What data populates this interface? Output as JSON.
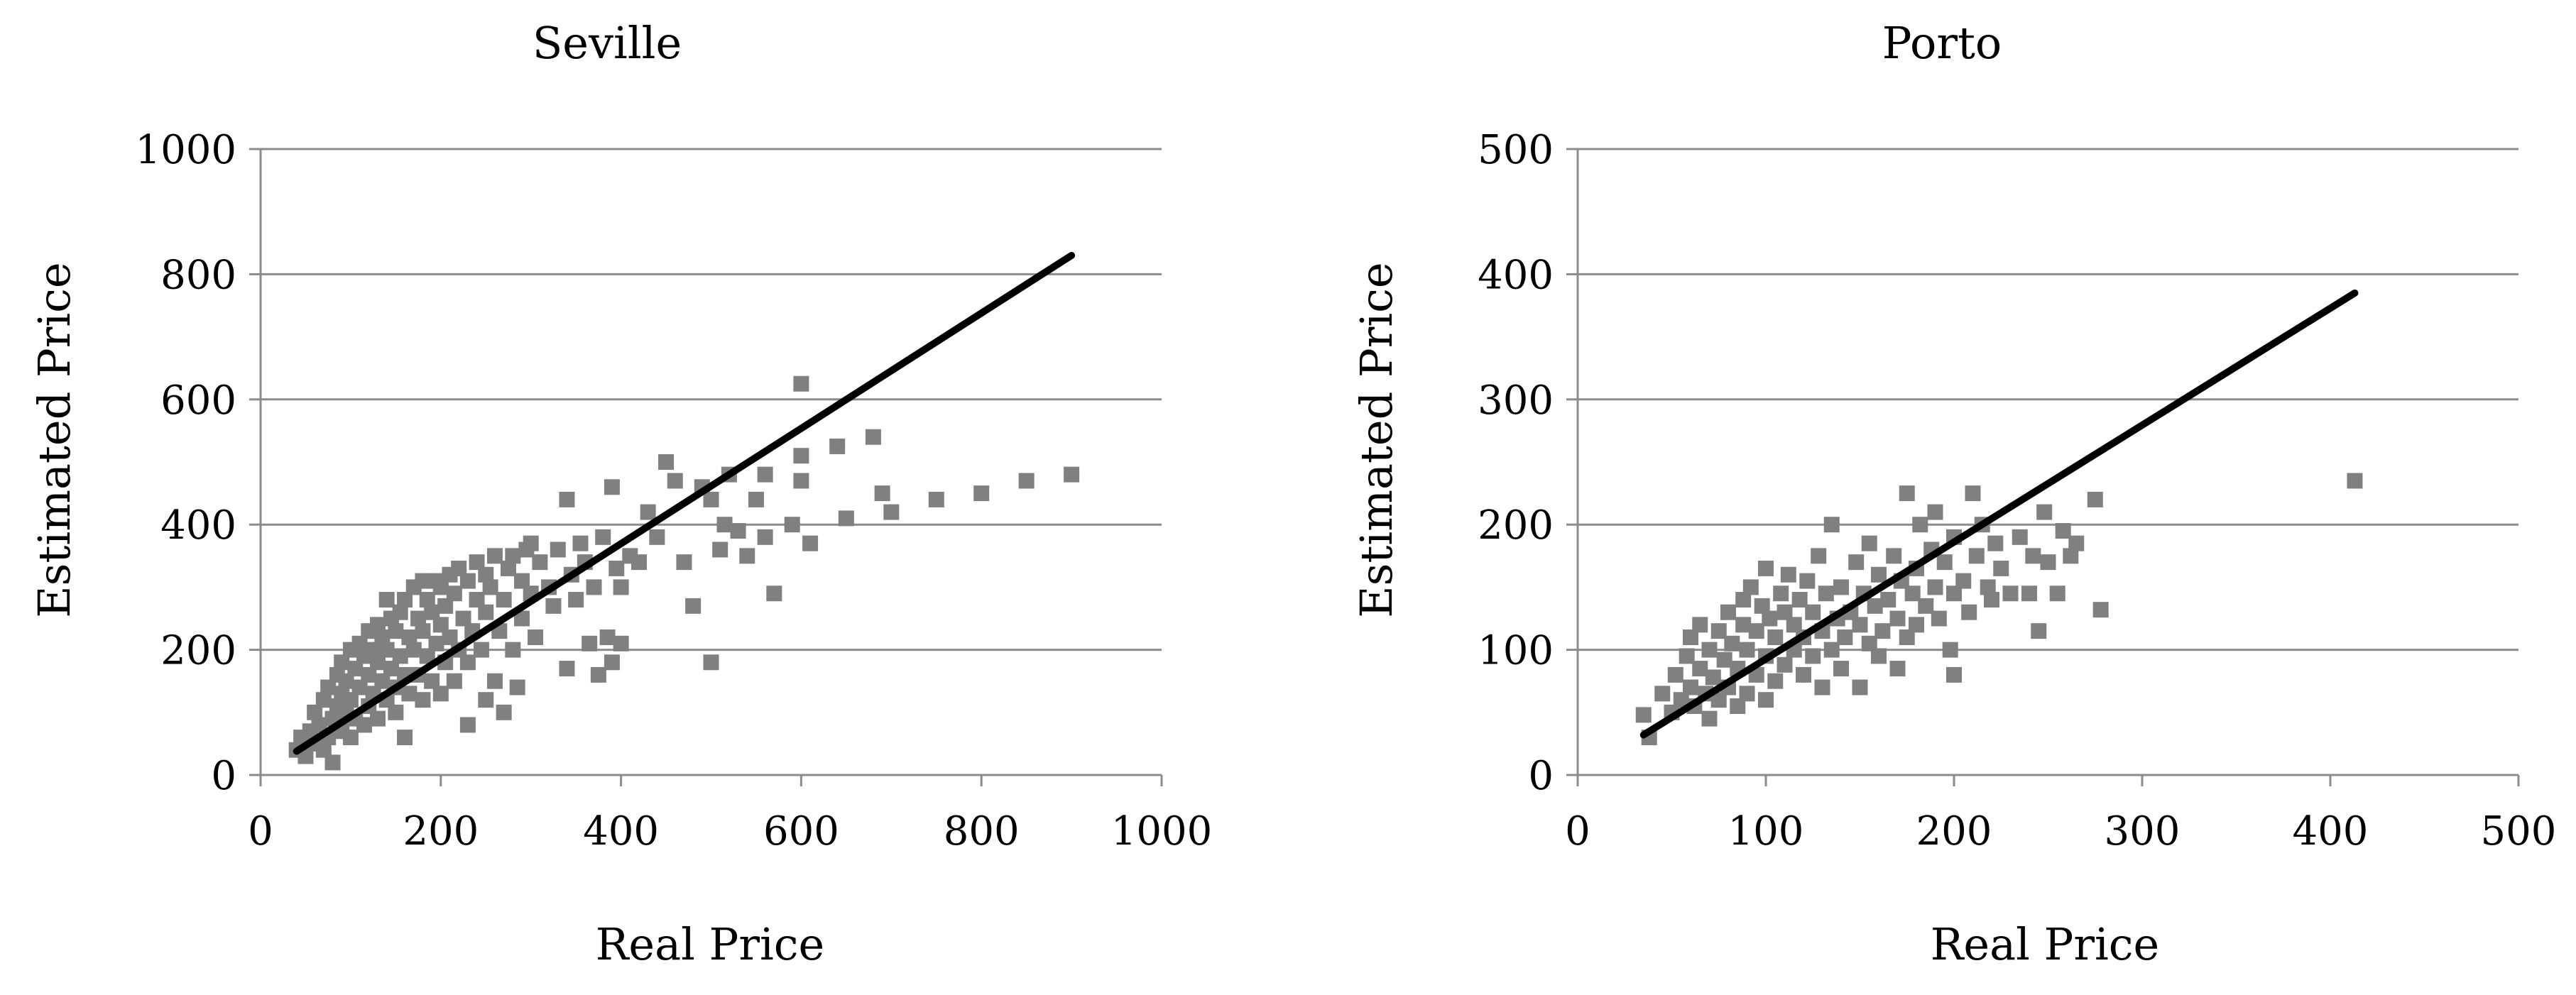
{
  "colors": {
    "points": "#808080",
    "fit_line": "#000000",
    "grid": "#8c8c8c"
  },
  "chart_data": [
    {
      "type": "scatter",
      "title": "Seville",
      "xlabel": "Real Price",
      "ylabel": "Estimated Price",
      "xlim": [
        0,
        1000
      ],
      "ylim": [
        0,
        1000
      ],
      "xticks": [
        0,
        200,
        400,
        600,
        800,
        1000
      ],
      "yticks": [
        0,
        200,
        400,
        600,
        800,
        1000
      ],
      "grid": "horizontal",
      "marker": "square",
      "fit_line": {
        "x": [
          40,
          900
        ],
        "y": [
          38,
          830
        ]
      },
      "points": [
        [
          40,
          40
        ],
        [
          45,
          60
        ],
        [
          50,
          30
        ],
        [
          55,
          70
        ],
        [
          60,
          50
        ],
        [
          60,
          100
        ],
        [
          65,
          80
        ],
        [
          70,
          40
        ],
        [
          70,
          120
        ],
        [
          75,
          60
        ],
        [
          75,
          140
        ],
        [
          80,
          20
        ],
        [
          80,
          90
        ],
        [
          85,
          110
        ],
        [
          85,
          160
        ],
        [
          90,
          70
        ],
        [
          90,
          130
        ],
        [
          90,
          180
        ],
        [
          95,
          100
        ],
        [
          95,
          150
        ],
        [
          100,
          60
        ],
        [
          100,
          120
        ],
        [
          100,
          200
        ],
        [
          105,
          90
        ],
        [
          105,
          170
        ],
        [
          110,
          140
        ],
        [
          110,
          210
        ],
        [
          115,
          80
        ],
        [
          115,
          190
        ],
        [
          120,
          110
        ],
        [
          120,
          160
        ],
        [
          120,
          230
        ],
        [
          125,
          130
        ],
        [
          125,
          200
        ],
        [
          130,
          90
        ],
        [
          130,
          180
        ],
        [
          130,
          240
        ],
        [
          135,
          150
        ],
        [
          135,
          220
        ],
        [
          140,
          280
        ],
        [
          140,
          120
        ],
        [
          140,
          200
        ],
        [
          145,
          170
        ],
        [
          145,
          250
        ],
        [
          150,
          100
        ],
        [
          150,
          140
        ],
        [
          150,
          230
        ],
        [
          155,
          190
        ],
        [
          155,
          260
        ],
        [
          160,
          60
        ],
        [
          160,
          160
        ],
        [
          160,
          280
        ],
        [
          165,
          130
        ],
        [
          165,
          220
        ],
        [
          170,
          200
        ],
        [
          170,
          300
        ],
        [
          175,
          160
        ],
        [
          175,
          250
        ],
        [
          180,
          120
        ],
        [
          180,
          230
        ],
        [
          180,
          310
        ],
        [
          185,
          190
        ],
        [
          185,
          280
        ],
        [
          190,
          150
        ],
        [
          190,
          260
        ],
        [
          195,
          210
        ],
        [
          195,
          310
        ],
        [
          200,
          130
        ],
        [
          200,
          240
        ],
        [
          200,
          300
        ],
        [
          205,
          180
        ],
        [
          205,
          270
        ],
        [
          210,
          220
        ],
        [
          210,
          320
        ],
        [
          215,
          150
        ],
        [
          215,
          290
        ],
        [
          220,
          200
        ],
        [
          220,
          330
        ],
        [
          225,
          250
        ],
        [
          230,
          80
        ],
        [
          230,
          180
        ],
        [
          230,
          310
        ],
        [
          235,
          230
        ],
        [
          240,
          280
        ],
        [
          240,
          340
        ],
        [
          245,
          200
        ],
        [
          250,
          120
        ],
        [
          250,
          260
        ],
        [
          250,
          320
        ],
        [
          255,
          300
        ],
        [
          260,
          150
        ],
        [
          260,
          350
        ],
        [
          265,
          230
        ],
        [
          270,
          100
        ],
        [
          270,
          280
        ],
        [
          275,
          330
        ],
        [
          280,
          200
        ],
        [
          280,
          350
        ],
        [
          285,
          140
        ],
        [
          290,
          250
        ],
        [
          290,
          310
        ],
        [
          295,
          360
        ],
        [
          300,
          290
        ],
        [
          300,
          370
        ],
        [
          305,
          220
        ],
        [
          310,
          340
        ],
        [
          320,
          300
        ],
        [
          325,
          270
        ],
        [
          330,
          360
        ],
        [
          340,
          170
        ],
        [
          340,
          440
        ],
        [
          345,
          320
        ],
        [
          350,
          280
        ],
        [
          355,
          370
        ],
        [
          360,
          340
        ],
        [
          365,
          210
        ],
        [
          370,
          300
        ],
        [
          375,
          160
        ],
        [
          380,
          380
        ],
        [
          385,
          220
        ],
        [
          390,
          460
        ],
        [
          390,
          180
        ],
        [
          395,
          330
        ],
        [
          400,
          300
        ],
        [
          400,
          210
        ],
        [
          410,
          350
        ],
        [
          420,
          340
        ],
        [
          430,
          420
        ],
        [
          440,
          380
        ],
        [
          450,
          500
        ],
        [
          460,
          470
        ],
        [
          470,
          340
        ],
        [
          480,
          270
        ],
        [
          490,
          460
        ],
        [
          500,
          180
        ],
        [
          500,
          440
        ],
        [
          510,
          360
        ],
        [
          515,
          400
        ],
        [
          520,
          480
        ],
        [
          530,
          390
        ],
        [
          540,
          350
        ],
        [
          550,
          440
        ],
        [
          560,
          480
        ],
        [
          560,
          380
        ],
        [
          570,
          290
        ],
        [
          590,
          400
        ],
        [
          600,
          625
        ],
        [
          600,
          510
        ],
        [
          600,
          470
        ],
        [
          610,
          370
        ],
        [
          640,
          525
        ],
        [
          650,
          410
        ],
        [
          680,
          540
        ],
        [
          690,
          450
        ],
        [
          700,
          420
        ],
        [
          750,
          440
        ],
        [
          800,
          450
        ],
        [
          850,
          470
        ],
        [
          900,
          480
        ]
      ]
    },
    {
      "type": "scatter",
      "title": "Porto",
      "xlabel": "Real Price",
      "ylabel": "Estimated Price",
      "xlim": [
        0,
        500
      ],
      "ylim": [
        0,
        500
      ],
      "xticks": [
        0,
        100,
        200,
        300,
        400,
        500
      ],
      "yticks": [
        0,
        100,
        200,
        300,
        400,
        500
      ],
      "grid": "horizontal",
      "marker": "square",
      "fit_line": {
        "x": [
          35,
          413
        ],
        "y": [
          32,
          385
        ]
      },
      "points": [
        [
          35,
          48
        ],
        [
          38,
          30
        ],
        [
          45,
          65
        ],
        [
          50,
          50
        ],
        [
          52,
          80
        ],
        [
          55,
          60
        ],
        [
          58,
          95
        ],
        [
          60,
          70
        ],
        [
          60,
          110
        ],
        [
          62,
          55
        ],
        [
          65,
          85
        ],
        [
          65,
          120
        ],
        [
          68,
          65
        ],
        [
          70,
          100
        ],
        [
          70,
          45
        ],
        [
          72,
          78
        ],
        [
          75,
          115
        ],
        [
          75,
          60
        ],
        [
          78,
          92
        ],
        [
          80,
          130
        ],
        [
          80,
          70
        ],
        [
          82,
          105
        ],
        [
          85,
          55
        ],
        [
          85,
          85
        ],
        [
          88,
          120
        ],
        [
          88,
          140
        ],
        [
          90,
          65
        ],
        [
          90,
          100
        ],
        [
          92,
          150
        ],
        [
          95,
          80
        ],
        [
          95,
          115
        ],
        [
          98,
          135
        ],
        [
          100,
          60
        ],
        [
          100,
          95
        ],
        [
          100,
          165
        ],
        [
          102,
          125
        ],
        [
          105,
          75
        ],
        [
          105,
          110
        ],
        [
          108,
          145
        ],
        [
          110,
          88
        ],
        [
          110,
          130
        ],
        [
          112,
          160
        ],
        [
          115,
          100
        ],
        [
          115,
          120
        ],
        [
          118,
          140
        ],
        [
          120,
          80
        ],
        [
          120,
          110
        ],
        [
          122,
          155
        ],
        [
          125,
          95
        ],
        [
          125,
          130
        ],
        [
          128,
          175
        ],
        [
          130,
          70
        ],
        [
          130,
          115
        ],
        [
          132,
          145
        ],
        [
          135,
          100
        ],
        [
          135,
          200
        ],
        [
          138,
          125
        ],
        [
          140,
          85
        ],
        [
          140,
          150
        ],
        [
          142,
          110
        ],
        [
          145,
          130
        ],
        [
          148,
          170
        ],
        [
          150,
          70
        ],
        [
          150,
          120
        ],
        [
          152,
          145
        ],
        [
          155,
          105
        ],
        [
          155,
          185
        ],
        [
          158,
          135
        ],
        [
          160,
          95
        ],
        [
          160,
          160
        ],
        [
          162,
          115
        ],
        [
          165,
          140
        ],
        [
          168,
          175
        ],
        [
          170,
          85
        ],
        [
          170,
          125
        ],
        [
          172,
          155
        ],
        [
          175,
          110
        ],
        [
          175,
          225
        ],
        [
          178,
          145
        ],
        [
          180,
          120
        ],
        [
          180,
          165
        ],
        [
          182,
          200
        ],
        [
          185,
          135
        ],
        [
          188,
          180
        ],
        [
          190,
          150
        ],
        [
          190,
          210
        ],
        [
          192,
          125
        ],
        [
          195,
          170
        ],
        [
          198,
          100
        ],
        [
          200,
          80
        ],
        [
          200,
          145
        ],
        [
          200,
          190
        ],
        [
          205,
          155
        ],
        [
          208,
          130
        ],
        [
          210,
          225
        ],
        [
          212,
          175
        ],
        [
          215,
          200
        ],
        [
          218,
          150
        ],
        [
          220,
          140
        ],
        [
          222,
          185
        ],
        [
          225,
          165
        ],
        [
          230,
          145
        ],
        [
          235,
          190
        ],
        [
          240,
          145
        ],
        [
          242,
          175
        ],
        [
          245,
          115
        ],
        [
          248,
          210
        ],
        [
          250,
          170
        ],
        [
          255,
          145
        ],
        [
          258,
          195
        ],
        [
          262,
          175
        ],
        [
          265,
          185
        ],
        [
          275,
          220
        ],
        [
          278,
          132
        ],
        [
          413,
          235
        ]
      ]
    }
  ]
}
